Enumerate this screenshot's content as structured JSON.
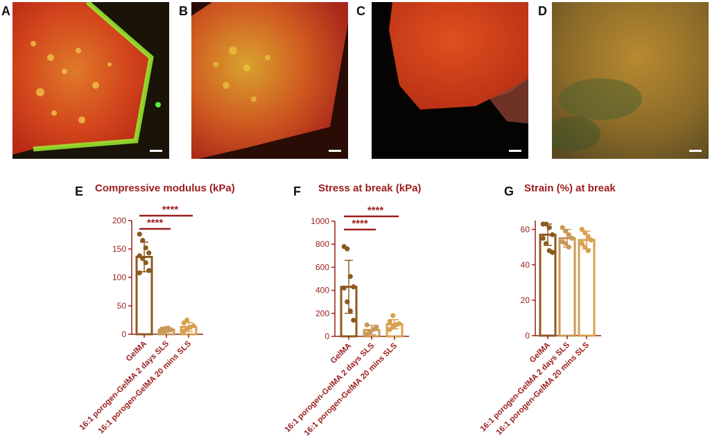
{
  "panels": {
    "A": "A",
    "B": "B",
    "C": "C",
    "D": "D"
  },
  "colors": {
    "accent": "#9b1c1c",
    "series": [
      "#8c5a1e",
      "#c9985a",
      "#d9a04e"
    ]
  },
  "chart_data": [
    {
      "type": "bar",
      "letter": "E",
      "title": "Compressive modulus (kPa)",
      "categories": [
        "GelMA",
        "16:1 porogen-GelMA 2 days SLS",
        "16:1 porogen-GelMA 20 mins SLS"
      ],
      "values": [
        136,
        8,
        13
      ],
      "errors": [
        26,
        3,
        8
      ],
      "points": [
        [
          176,
          165,
          152,
          143,
          138,
          133,
          126,
          112,
          108
        ],
        [
          5,
          6,
          7,
          8,
          9,
          10,
          11
        ],
        [
          6,
          9,
          12,
          15,
          20,
          25
        ]
      ],
      "ylim": [
        0,
        200
      ],
      "yticks": [
        0,
        50,
        100,
        150,
        200
      ],
      "xlabel": "",
      "ylabel": "",
      "significance": [
        {
          "from": 0,
          "to": 1,
          "label": "****"
        },
        {
          "from": 0,
          "to": 2,
          "label": "****"
        }
      ]
    },
    {
      "type": "bar",
      "letter": "F",
      "title": "Stress at break (kPa)",
      "categories": [
        "GelMA",
        "16:1 porogen-GelMA 2 days SLS",
        "16:1 porogen-GelMA 20 mins SLS"
      ],
      "values": [
        430,
        55,
        105
      ],
      "errors": [
        230,
        40,
        40
      ],
      "points": [
        [
          780,
          760,
          520,
          430,
          420,
          300,
          220,
          140
        ],
        [
          20,
          40,
          60,
          80,
          100
        ],
        [
          60,
          80,
          100,
          110,
          130,
          180
        ]
      ],
      "ylim": [
        0,
        1000
      ],
      "yticks": [
        0,
        200,
        400,
        600,
        800,
        1000
      ],
      "xlabel": "",
      "ylabel": "",
      "significance": [
        {
          "from": 0,
          "to": 1,
          "label": "****"
        },
        {
          "from": 0,
          "to": 2,
          "label": "****"
        }
      ]
    },
    {
      "type": "bar",
      "letter": "G",
      "title": "Strain (%) at break",
      "categories": [
        "GelMA",
        "16:1 porogen-GelMA 2 days SLS",
        "16:1 porogen-GelMA 20 mins SLS"
      ],
      "values": [
        57,
        55,
        54
      ],
      "errors": [
        6,
        5,
        5
      ],
      "points": [
        [
          63,
          63,
          61,
          57,
          55,
          52,
          48,
          47
        ],
        [
          61,
          59,
          57,
          55,
          53,
          52,
          50
        ],
        [
          60,
          58,
          56,
          54,
          52,
          50,
          48
        ]
      ],
      "ylim": [
        0,
        65
      ],
      "yticks": [
        0,
        20,
        40,
        60
      ],
      "xlabel": "",
      "ylabel": "",
      "significance": []
    }
  ]
}
